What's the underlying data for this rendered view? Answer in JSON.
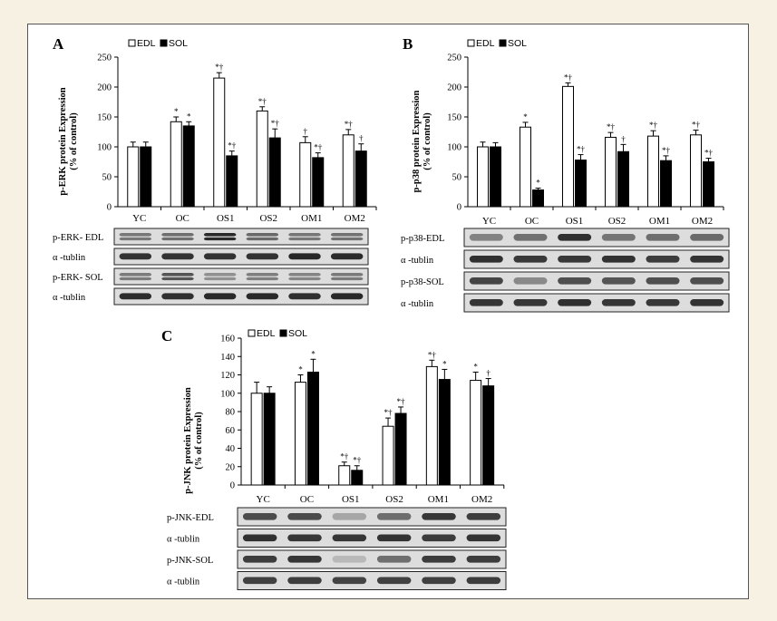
{
  "figure": {
    "legend": {
      "edl": "EDL",
      "sol": "SOL"
    },
    "colors": {
      "edl": "#ffffff",
      "sol": "#000000",
      "frame": "#555555"
    }
  },
  "chart_data": [
    {
      "type": "bar",
      "panel": "A",
      "ylabel_line1": "p-ERK  protein  Expression",
      "ylabel_line2": "(% of control)",
      "ylim": [
        0,
        250
      ],
      "yticks": [
        0,
        50,
        100,
        150,
        200,
        250
      ],
      "categories": [
        "YC",
        "OC",
        "OS1",
        "OS2",
        "OM1",
        "OM2"
      ],
      "series": [
        {
          "name": "EDL",
          "values": [
            100,
            142,
            215,
            160,
            107,
            120
          ],
          "errors": [
            8,
            8,
            9,
            7,
            10,
            9
          ],
          "sig": [
            "",
            "*",
            "*†",
            "*†",
            "†",
            "*†"
          ]
        },
        {
          "name": "SOL",
          "values": [
            100,
            135,
            85,
            115,
            82,
            93
          ],
          "errors": [
            8,
            7,
            8,
            15,
            8,
            12
          ],
          "sig": [
            "",
            "*",
            "*†",
            "*†",
            "*†",
            "†"
          ]
        }
      ],
      "blots": [
        "p-ERK-  EDL",
        "α -tublin",
        "p-ERK-  SOL",
        "α -tublin"
      ]
    },
    {
      "type": "bar",
      "panel": "B",
      "ylabel_line1": "p-p38  protein  Expression",
      "ylabel_line2": "(% of control)",
      "ylim": [
        0,
        250
      ],
      "yticks": [
        0,
        50,
        100,
        150,
        200,
        250
      ],
      "categories": [
        "YC",
        "OC",
        "OS1",
        "OS2",
        "OM1",
        "OM2"
      ],
      "series": [
        {
          "name": "EDL",
          "values": [
            100,
            133,
            201,
            116,
            118,
            120
          ],
          "errors": [
            8,
            8,
            6,
            8,
            9,
            8
          ],
          "sig": [
            "",
            "*",
            "*†",
            "*†",
            "*†",
            "*†"
          ]
        },
        {
          "name": "SOL",
          "values": [
            100,
            28,
            78,
            92,
            77,
            75
          ],
          "errors": [
            7,
            3,
            9,
            12,
            8,
            6
          ],
          "sig": [
            "",
            "*",
            "*†",
            "†",
            "*†",
            "*†"
          ]
        }
      ],
      "blots": [
        "p-p38-EDL",
        "α -tublin",
        "p-p38-SOL",
        "α -tublin"
      ]
    },
    {
      "type": "bar",
      "panel": "C",
      "ylabel_line1": "p-JNK  protein  Expression",
      "ylabel_line2": "(% of control)",
      "ylim": [
        0,
        160
      ],
      "yticks": [
        0,
        20,
        40,
        60,
        80,
        100,
        120,
        140,
        160
      ],
      "categories": [
        "YC",
        "OC",
        "OS1",
        "OS2",
        "OM1",
        "OM2"
      ],
      "series": [
        {
          "name": "EDL",
          "values": [
            100,
            112,
            21,
            64,
            129,
            114
          ],
          "errors": [
            12,
            8,
            4,
            9,
            7,
            9
          ],
          "sig": [
            "",
            "*",
            "*†",
            "*†",
            "*†",
            "*"
          ]
        },
        {
          "name": "SOL",
          "values": [
            100,
            123,
            16,
            78,
            115,
            108
          ],
          "errors": [
            7,
            14,
            5,
            7,
            11,
            8
          ],
          "sig": [
            "",
            "*",
            "*†",
            "*†",
            "*",
            "†"
          ]
        }
      ],
      "blots": [
        "p-JNK-EDL",
        "α -tublin",
        "p-JNK-SOL",
        "α -tublin"
      ]
    }
  ]
}
